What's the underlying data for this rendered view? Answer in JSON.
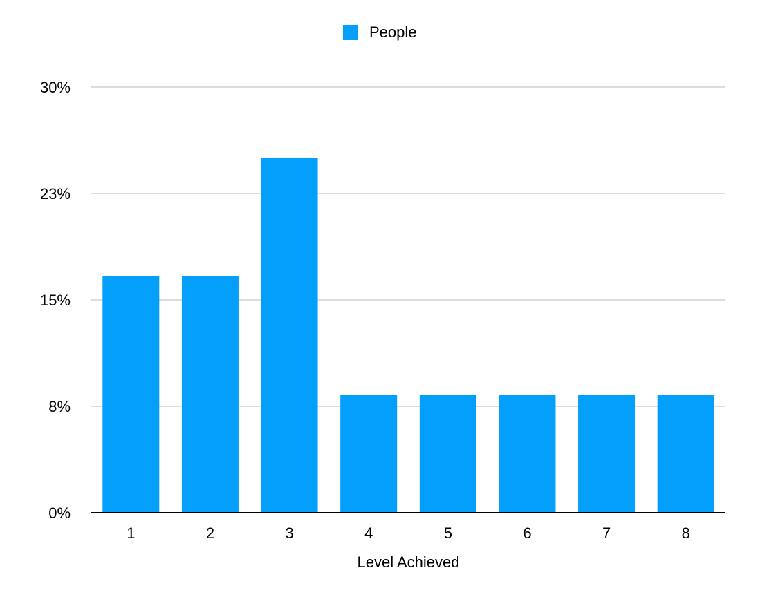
{
  "chart_data": {
    "type": "bar",
    "categories": [
      "1",
      "2",
      "3",
      "4",
      "5",
      "6",
      "7",
      "8"
    ],
    "series": [
      {
        "name": "People",
        "values": [
          16.7,
          16.7,
          25.0,
          8.3,
          8.3,
          8.3,
          8.3,
          8.3
        ]
      }
    ],
    "y_ticks": [
      "0%",
      "8%",
      "15%",
      "23%",
      "30%"
    ],
    "ylim": [
      0,
      30
    ],
    "xlabel": "Level Achieved",
    "ylabel": "",
    "title": "",
    "legend_position": "top-center",
    "grid": true,
    "colors": {
      "bar": "#039ffb",
      "grid": "#c8c8c8",
      "axis": "#000000"
    }
  }
}
